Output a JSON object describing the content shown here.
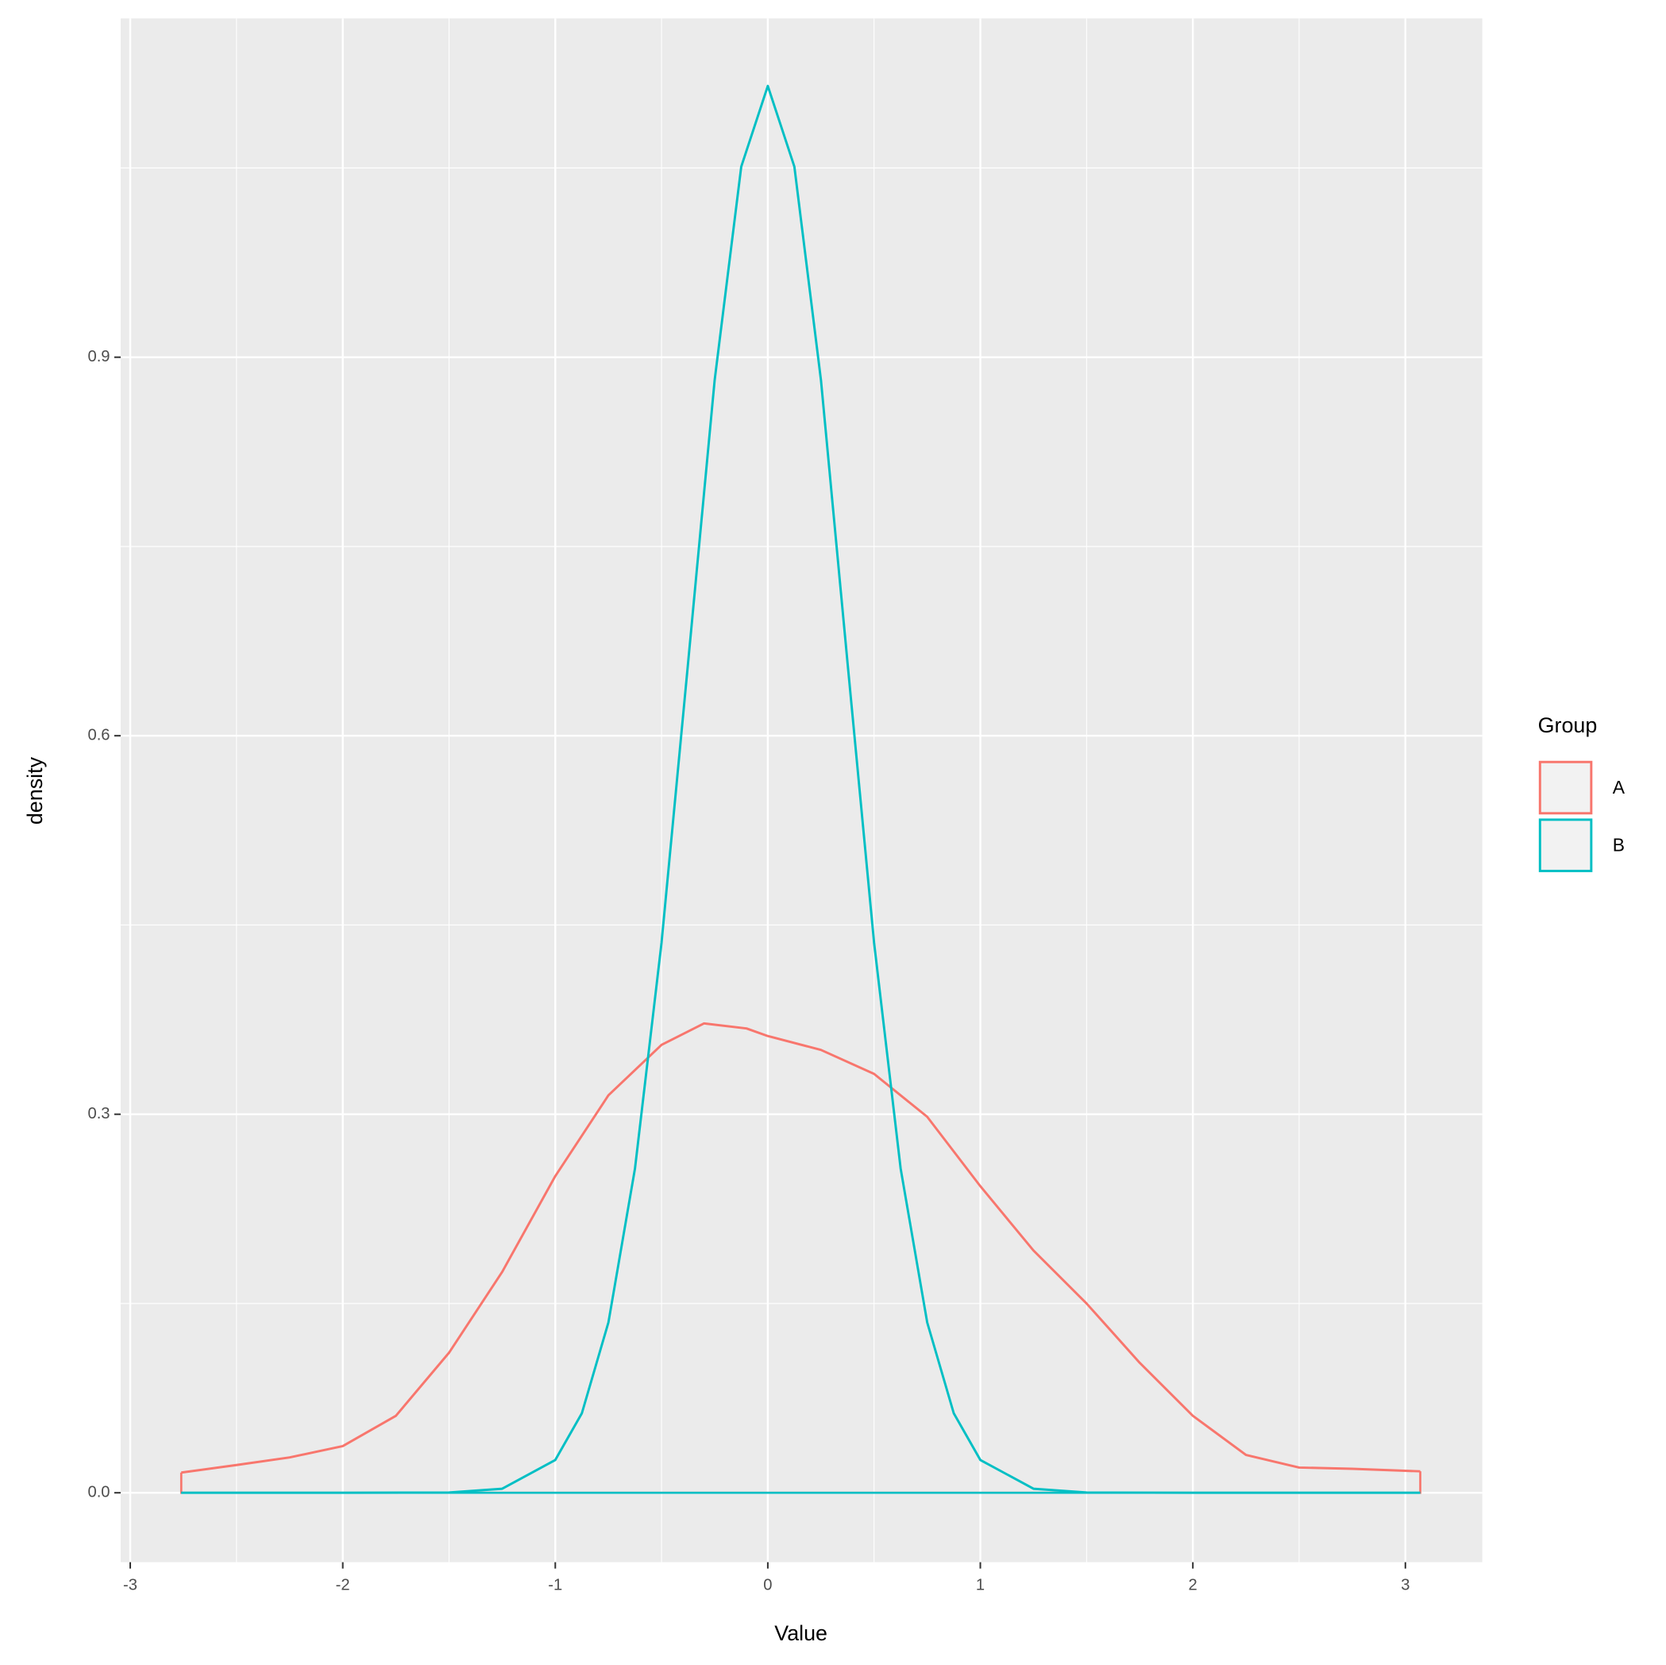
{
  "chart_data": {
    "type": "density",
    "xlabel": "Value",
    "ylabel": "density",
    "xlim": [
      -3.045,
      3.362
    ],
    "ylim": [
      -0.055,
      1.1685
    ],
    "xticks": [
      -3,
      -2,
      -1,
      0,
      1,
      2,
      3
    ],
    "yticks": [
      {
        "value": 0,
        "label": "0.0"
      },
      0.3,
      0.6,
      0.9
    ],
    "grid": true,
    "legend_title": "Group",
    "legend_position": "right",
    "series": [
      {
        "name": "A",
        "color": "#F8766D",
        "x": [
          -2.76,
          -2.5,
          -2.25,
          -2.0,
          -1.75,
          -1.5,
          -1.25,
          -1.0,
          -0.75,
          -0.5,
          -0.3,
          -0.1,
          0,
          0.25,
          0.5,
          0.75,
          1.0,
          1.25,
          1.5,
          1.75,
          2.0,
          2.25,
          2.5,
          2.75,
          3.07
        ],
        "values": [
          0.016,
          0.022,
          0.028,
          0.037,
          0.061,
          0.111,
          0.175,
          0.251,
          0.315,
          0.355,
          0.372,
          0.368,
          0.362,
          0.351,
          0.332,
          0.298,
          0.243,
          0.192,
          0.15,
          0.103,
          0.061,
          0.03,
          0.02,
          0.019,
          0.017
        ]
      },
      {
        "name": "B",
        "color": "#00BFC4",
        "x": [
          -2.76,
          -2.0,
          -1.5,
          -1.25,
          -1.0,
          -0.875,
          -0.75,
          -0.625,
          -0.5,
          -0.375,
          -0.25,
          -0.125,
          0,
          0.125,
          0.25,
          0.375,
          0.5,
          0.625,
          0.75,
          0.875,
          1.0,
          1.25,
          1.5,
          2.0,
          3.07
        ],
        "values": [
          0,
          0,
          0.0002,
          0.0032,
          0.026,
          0.063,
          0.135,
          0.257,
          0.436,
          0.658,
          0.882,
          1.051,
          1.115,
          1.051,
          0.882,
          0.658,
          0.436,
          0.257,
          0.135,
          0.063,
          0.026,
          0.0032,
          0.0002,
          0,
          0
        ]
      }
    ]
  }
}
